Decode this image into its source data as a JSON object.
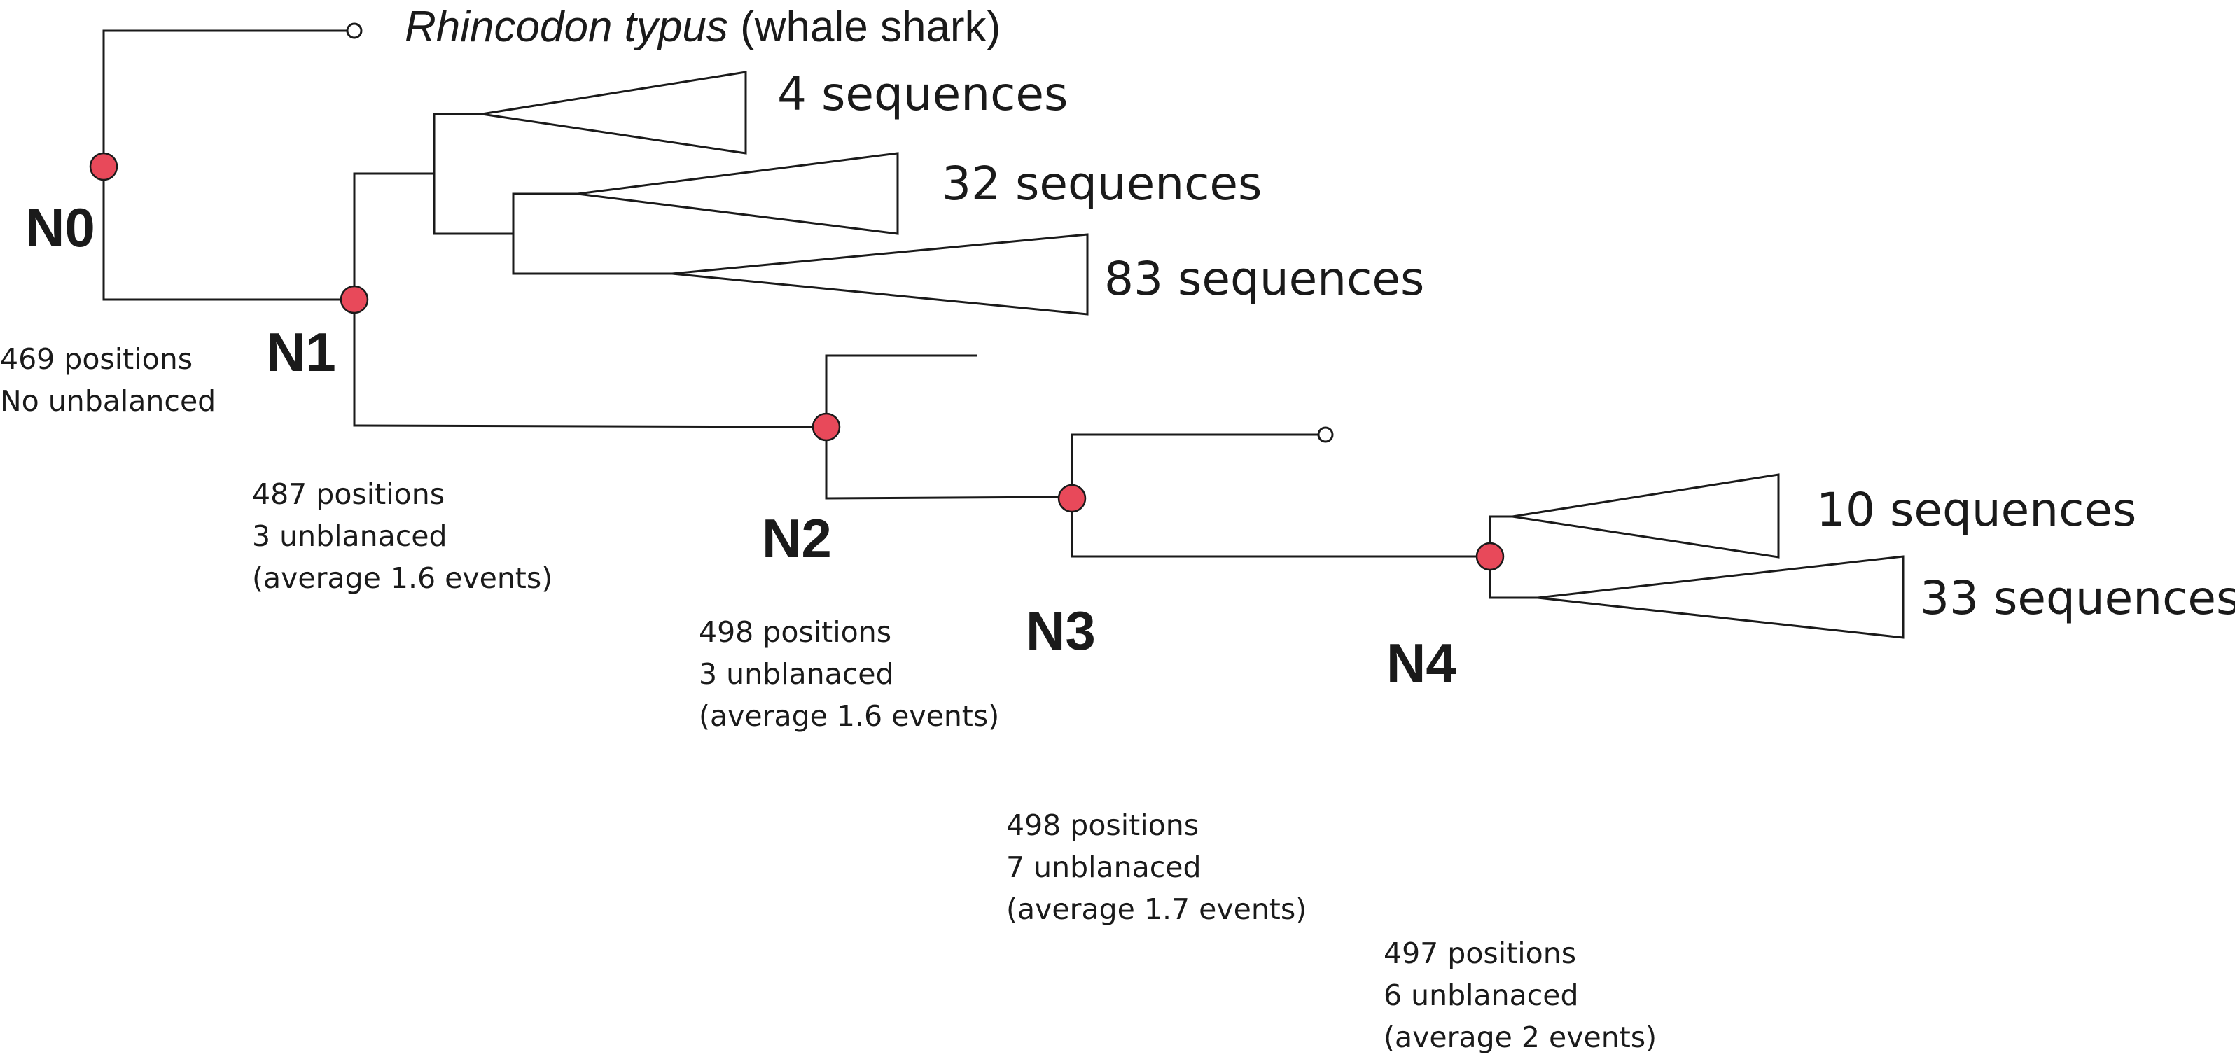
{
  "outgroup": {
    "scientific_name": "Rhincodon typus",
    "common_name": "(whale shark)"
  },
  "clades": [
    {
      "label": "4 sequences"
    },
    {
      "label": "32 sequences"
    },
    {
      "label": "83 sequences"
    },
    {
      "label": "10 sequences"
    },
    {
      "label": "33 sequences"
    }
  ],
  "nodes": [
    {
      "name": "N0",
      "stats": [
        "469 positions",
        "No unbalanced"
      ]
    },
    {
      "name": "N1",
      "stats": [
        "487 positions",
        "3 unblanaced",
        "(average 1.6 events)"
      ]
    },
    {
      "name": "N2",
      "stats": [
        "498 positions",
        "3 unblanaced",
        "(average 1.6 events)"
      ]
    },
    {
      "name": "N3",
      "stats": [
        "498 positions",
        "7 unblanaced",
        "(average 1.7 events)"
      ]
    },
    {
      "name": "N4",
      "stats": [
        "497 positions",
        "6 unblanaced",
        "(average 2 events)"
      ]
    }
  ],
  "colors": {
    "node_marker": "#e8495a",
    "line": "#1a1a1a"
  }
}
